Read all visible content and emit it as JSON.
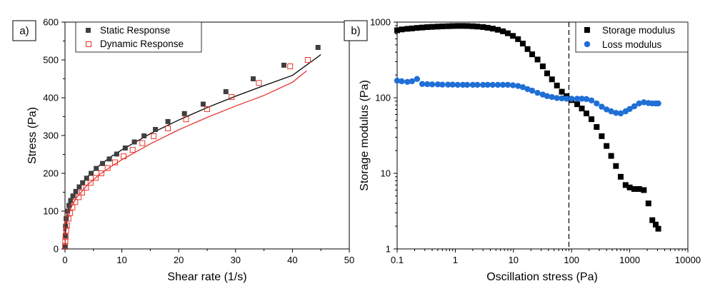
{
  "chart_data": [
    {
      "type": "scatter",
      "panel_label": "a)",
      "xlabel": "Shear rate (1/s)",
      "ylabel": "Stress (Pa)",
      "xlim": [
        0,
        50
      ],
      "ylim": [
        0,
        600
      ],
      "xticks": [
        "0",
        "10",
        "20",
        "30",
        "40",
        "50"
      ],
      "yticks": [
        "0",
        "100",
        "200",
        "300",
        "400",
        "500",
        "600"
      ],
      "legend_position": "top-left",
      "grid": false,
      "series": [
        {
          "name": "Static Response",
          "marker": "filled-square",
          "color": "#3f3f3f",
          "fit_color": "#000000",
          "points": [
            [
              0.02,
              5
            ],
            [
              0.05,
              35
            ],
            [
              0.1,
              60
            ],
            [
              0.2,
              80
            ],
            [
              0.4,
              100
            ],
            [
              0.7,
              115
            ],
            [
              1.0,
              128
            ],
            [
              1.4,
              140
            ],
            [
              1.9,
              152
            ],
            [
              2.5,
              164
            ],
            [
              3.1,
              175
            ],
            [
              3.8,
              187
            ],
            [
              4.6,
              200
            ],
            [
              5.5,
              213
            ],
            [
              6.6,
              226
            ],
            [
              7.8,
              238
            ],
            [
              9.1,
              251
            ],
            [
              10.6,
              267
            ],
            [
              12.2,
              283
            ],
            [
              13.9,
              299
            ],
            [
              15.9,
              316
            ],
            [
              18.1,
              337
            ],
            [
              21.0,
              358
            ],
            [
              24.3,
              383
            ],
            [
              28.3,
              416
            ],
            [
              33.1,
              450
            ],
            [
              38.5,
              486
            ],
            [
              44.5,
              533
            ]
          ],
          "fit": [
            [
              0,
              0
            ],
            [
              0.05,
              45
            ],
            [
              0.3,
              88
            ],
            [
              1,
              126
            ],
            [
              2,
              154
            ],
            [
              4,
              192
            ],
            [
              6,
              220
            ],
            [
              8,
              243
            ],
            [
              10,
              262
            ],
            [
              15,
              305
            ],
            [
              20,
              341
            ],
            [
              25,
              374
            ],
            [
              30,
              404
            ],
            [
              35,
              432
            ],
            [
              40,
              459
            ],
            [
              45,
              514
            ]
          ]
        },
        {
          "name": "Dynamic Response",
          "marker": "open-square",
          "color": "#e8332a",
          "fit_color": "#e8332a",
          "points": [
            [
              0.02,
              8
            ],
            [
              0.05,
              20
            ],
            [
              0.1,
              32
            ],
            [
              0.2,
              48
            ],
            [
              0.35,
              62
            ],
            [
              0.6,
              80
            ],
            [
              0.9,
              95
            ],
            [
              1.3,
              110
            ],
            [
              1.8,
              124
            ],
            [
              2.4,
              137
            ],
            [
              3.0,
              149
            ],
            [
              3.7,
              162
            ],
            [
              4.5,
              175
            ],
            [
              5.4,
              188
            ],
            [
              6.4,
              200
            ],
            [
              7.5,
              214
            ],
            [
              8.8,
              229
            ],
            [
              10.3,
              245
            ],
            [
              11.9,
              262
            ],
            [
              13.6,
              280
            ],
            [
              15.6,
              298
            ],
            [
              18.1,
              319
            ],
            [
              21.3,
              343
            ],
            [
              25.0,
              370
            ],
            [
              29.3,
              402
            ],
            [
              34.1,
              439
            ],
            [
              39.6,
              483
            ],
            [
              42.7,
              500
            ]
          ],
          "fit": [
            [
              0,
              0
            ],
            [
              0.05,
              30
            ],
            [
              0.3,
              70
            ],
            [
              1,
              108
            ],
            [
              2,
              135
            ],
            [
              4,
              170
            ],
            [
              6,
              196
            ],
            [
              8,
              217
            ],
            [
              10,
              236
            ],
            [
              15,
              278
            ],
            [
              20,
              315
            ],
            [
              25,
              348
            ],
            [
              30,
              378
            ],
            [
              35,
              406
            ],
            [
              40,
              441
            ],
            [
              42.5,
              471
            ]
          ]
        }
      ]
    },
    {
      "type": "scatter",
      "panel_label": "b)",
      "xlabel": "Oscillation stress (Pa)",
      "ylabel": "Storage modulus (Pa)",
      "xscale": "log",
      "yscale": "log",
      "xlim": [
        0.1,
        10000
      ],
      "ylim": [
        1,
        1000
      ],
      "xticks": [
        "0.1",
        "1",
        "10",
        "100",
        "1000",
        "10000"
      ],
      "yticks": [
        "1",
        "10",
        "100",
        "1000"
      ],
      "legend_position": "top-right",
      "grid": false,
      "vline": {
        "x": 90,
        "style": "dashed"
      },
      "series": [
        {
          "name": "Storage modulus",
          "marker": "filled-square",
          "color": "#000000",
          "points": [
            [
              0.1,
              780
            ],
            [
              0.12,
              800
            ],
            [
              0.15,
              815
            ],
            [
              0.18,
              825
            ],
            [
              0.22,
              838
            ],
            [
              0.27,
              848
            ],
            [
              0.33,
              858
            ],
            [
              0.4,
              865
            ],
            [
              0.5,
              872
            ],
            [
              0.6,
              878
            ],
            [
              0.75,
              883
            ],
            [
              0.9,
              887
            ],
            [
              1.1,
              890
            ],
            [
              1.35,
              890
            ],
            [
              1.6,
              888
            ],
            [
              2.0,
              882
            ],
            [
              2.4,
              873
            ],
            [
              3.0,
              860
            ],
            [
              3.6,
              842
            ],
            [
              4.4,
              820
            ],
            [
              5.4,
              792
            ],
            [
              6.6,
              756
            ],
            [
              8.0,
              712
            ],
            [
              9.8,
              657
            ],
            [
              12,
              595
            ],
            [
              14.5,
              520
            ],
            [
              17.5,
              440
            ],
            [
              21,
              375
            ],
            [
              26,
              320
            ],
            [
              32,
              260
            ],
            [
              38,
              210
            ],
            [
              46,
              175
            ],
            [
              56,
              145
            ],
            [
              68,
              120
            ],
            [
              82,
              105
            ],
            [
              100,
              93
            ],
            [
              125,
              82
            ],
            [
              150,
              72
            ],
            [
              180,
              62
            ],
            [
              220,
              52
            ],
            [
              270,
              41
            ],
            [
              330,
              31
            ],
            [
              400,
              23
            ],
            [
              480,
              17
            ],
            [
              580,
              12.5
            ],
            [
              700,
              9
            ],
            [
              850,
              7
            ],
            [
              1000,
              6.5
            ],
            [
              1200,
              6.2
            ],
            [
              1450,
              6.2
            ],
            [
              1750,
              6.0
            ],
            [
              2100,
              4.0
            ],
            [
              2450,
              2.4
            ],
            [
              2800,
              2.1
            ],
            [
              3100,
              1.85
            ]
          ]
        },
        {
          "name": "Loss modulus",
          "marker": "filled-circle",
          "color": "#1f6fd6",
          "points": [
            [
              0.1,
              168
            ],
            [
              0.12,
              165
            ],
            [
              0.15,
              162
            ],
            [
              0.18,
              165
            ],
            [
              0.22,
              177
            ],
            [
              0.27,
              152
            ],
            [
              0.33,
              151
            ],
            [
              0.4,
              150
            ],
            [
              0.5,
              150
            ],
            [
              0.6,
              149
            ],
            [
              0.75,
              149
            ],
            [
              0.9,
              149
            ],
            [
              1.1,
              148
            ],
            [
              1.35,
              148
            ],
            [
              1.6,
              148
            ],
            [
              2.0,
              148
            ],
            [
              2.4,
              148
            ],
            [
              3.0,
              148
            ],
            [
              3.6,
              148
            ],
            [
              4.4,
              148
            ],
            [
              5.4,
              148
            ],
            [
              6.6,
              148
            ],
            [
              8.0,
              148
            ],
            [
              9.8,
              146
            ],
            [
              12,
              143
            ],
            [
              14.5,
              138
            ],
            [
              17.5,
              130
            ],
            [
              21,
              124
            ],
            [
              26,
              116
            ],
            [
              32,
              110
            ],
            [
              38,
              105
            ],
            [
              46,
              102
            ],
            [
              56,
              99
            ],
            [
              68,
              98
            ],
            [
              82,
              97
            ],
            [
              100,
              97
            ],
            [
              125,
              97
            ],
            [
              150,
              97
            ],
            [
              180,
              96
            ],
            [
              220,
              92
            ],
            [
              270,
              84
            ],
            [
              330,
              76
            ],
            [
              400,
              70
            ],
            [
              480,
              66
            ],
            [
              580,
              63
            ],
            [
              700,
              62
            ],
            [
              850,
              66
            ],
            [
              1000,
              71
            ],
            [
              1200,
              77
            ],
            [
              1450,
              84
            ],
            [
              1750,
              87
            ],
            [
              2100,
              85
            ],
            [
              2450,
              84
            ],
            [
              2800,
              84
            ],
            [
              3100,
              84
            ]
          ]
        }
      ]
    }
  ]
}
